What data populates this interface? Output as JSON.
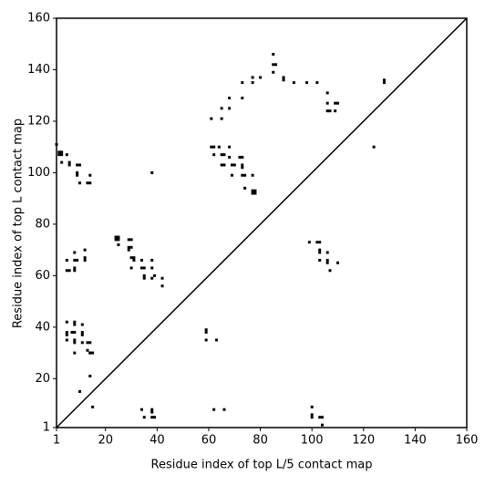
{
  "chart_data": {
    "type": "scatter",
    "xlabel": "Residue index of top L/5 contact map",
    "ylabel": "Residue index of top L contact map",
    "color": "#000000",
    "xlim": [
      1,
      160
    ],
    "ylim": [
      1,
      160
    ],
    "xticks": [
      1,
      20,
      40,
      60,
      80,
      100,
      120,
      140,
      160
    ],
    "yticks": [
      1,
      20,
      40,
      60,
      80,
      100,
      120,
      140,
      160
    ],
    "x": [
      1,
      2,
      3,
      2,
      3,
      3,
      6,
      6,
      5,
      9,
      10,
      9,
      9,
      10,
      13,
      14,
      14,
      38,
      5,
      5,
      6,
      8,
      8,
      9,
      8,
      8,
      12,
      12,
      12,
      5,
      5,
      5,
      5,
      8,
      8,
      7,
      8,
      8,
      8,
      8,
      11,
      11,
      11,
      11,
      13,
      13,
      14,
      14,
      15,
      14,
      14,
      10,
      15,
      24,
      24,
      25,
      25,
      25,
      29,
      30,
      29,
      29,
      30,
      30,
      31,
      31,
      30,
      34,
      34,
      35,
      35,
      35,
      38,
      38,
      38,
      39,
      42,
      42,
      34,
      35,
      38,
      38,
      38,
      39,
      59,
      59,
      59,
      63,
      62,
      66,
      61,
      65,
      65,
      68,
      68,
      73,
      73,
      77,
      77,
      80,
      61,
      62,
      64,
      68,
      62,
      65,
      66,
      68,
      72,
      73,
      65,
      66,
      69,
      70,
      73,
      73,
      69,
      73,
      74,
      77,
      74,
      77,
      78,
      77,
      78,
      85,
      85,
      86,
      85,
      89,
      89,
      93,
      98,
      102,
      106,
      106,
      106,
      107,
      109,
      110,
      109,
      124,
      128,
      128,
      99,
      102,
      103,
      103,
      103,
      103,
      106,
      106,
      106,
      107,
      110,
      100,
      100,
      100,
      103,
      104,
      104
    ],
    "values": [
      111,
      108,
      108,
      107,
      107,
      104,
      104,
      103,
      107,
      103,
      103,
      100,
      99,
      96,
      96,
      96,
      99,
      100,
      66,
      62,
      62,
      69,
      66,
      66,
      63,
      62,
      70,
      67,
      66,
      42,
      38,
      37,
      35,
      42,
      41,
      38,
      38,
      35,
      34,
      30,
      41,
      38,
      37,
      34,
      34,
      31,
      30,
      30,
      30,
      34,
      21,
      15,
      9,
      75,
      74,
      75,
      74,
      72,
      74,
      74,
      71,
      70,
      71,
      67,
      67,
      66,
      63,
      66,
      63,
      63,
      60,
      59,
      66,
      63,
      59,
      60,
      59,
      56,
      8,
      5,
      8,
      7,
      5,
      5,
      39,
      38,
      35,
      35,
      8,
      8,
      121,
      125,
      121,
      129,
      125,
      129,
      135,
      137,
      135,
      137,
      110,
      110,
      110,
      110,
      107,
      107,
      107,
      106,
      106,
      106,
      103,
      103,
      103,
      103,
      103,
      102,
      99,
      99,
      99,
      99,
      94,
      93,
      93,
      92,
      92,
      146,
      142,
      142,
      139,
      137,
      136,
      135,
      135,
      135,
      131,
      127,
      124,
      124,
      127,
      127,
      124,
      110,
      136,
      135,
      73,
      73,
      73,
      70,
      69,
      66,
      69,
      66,
      65,
      62,
      65,
      9,
      6,
      5,
      5,
      5,
      2
    ]
  }
}
